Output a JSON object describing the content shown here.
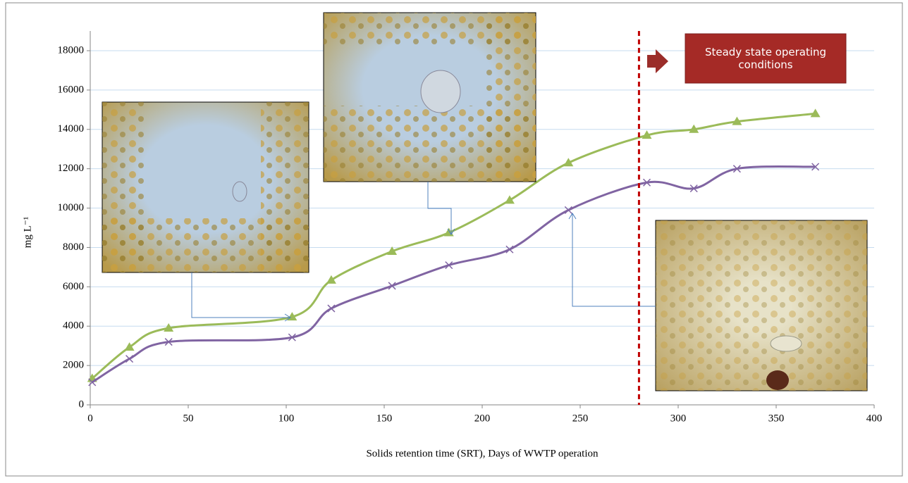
{
  "chart_data": {
    "type": "line",
    "xlabel": "Solids retention time (SRT), Days of WWTP operation",
    "ylabel": "mg L⁻¹",
    "annotation": "Steady state operating conditions",
    "vline": 280,
    "x": [
      1,
      20,
      40,
      103,
      123,
      154,
      183,
      214,
      244,
      284,
      308,
      330,
      370
    ],
    "series": [
      {
        "color": "#9bbb59",
        "marker": "triangle",
        "values": [
          1340,
          2930,
          3900,
          4470,
          6340,
          7800,
          8750,
          10400,
          12300,
          13700,
          14000,
          14400,
          14800
        ]
      },
      {
        "color": "#8064a2",
        "marker": "x",
        "values": [
          1150,
          2340,
          3200,
          3430,
          4900,
          6050,
          7100,
          7900,
          9900,
          11300,
          11000,
          12000,
          12100
        ]
      }
    ],
    "xlim": [
      0,
      400
    ],
    "xticks": [
      0,
      50,
      100,
      150,
      200,
      250,
      300,
      350,
      400
    ],
    "ylim": [
      0,
      18000
    ],
    "yticks": [
      0,
      2000,
      4000,
      6000,
      8000,
      10000,
      12000,
      14000,
      16000,
      18000
    ],
    "grid": true
  }
}
